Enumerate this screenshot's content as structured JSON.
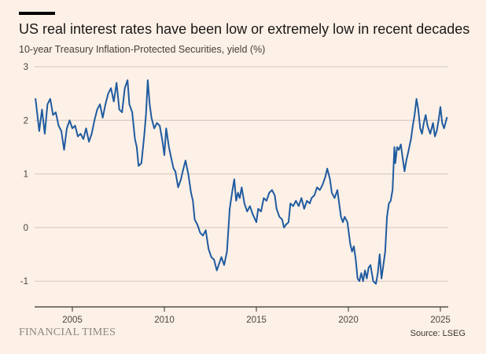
{
  "header": {
    "title": "US real interest rates have been low or extremely low in recent decades",
    "subtitle": "10-year Treasury Inflation-Protected Securities, yield (%)"
  },
  "footer": {
    "brand": "FINANCIAL TIMES",
    "source": "Source: LSEG"
  },
  "colors": {
    "background": "#fdf0e6",
    "line": "#1f5ba0",
    "grid": "#cfc6bf",
    "baseline": "#33302e"
  },
  "chart_data": {
    "type": "line",
    "title": "US real interest rates have been low or extremely low in recent decades",
    "ylabel": "10-year Treasury Inflation-Protected Securities, yield (%)",
    "ylim": [
      -1.5,
      3
    ],
    "xlim": [
      2003.0,
      2025.4
    ],
    "yticks": [
      "3",
      "2",
      "1",
      "0",
      "-1"
    ],
    "xticks": [
      "2005",
      "2010",
      "2015",
      "2020",
      "2025"
    ],
    "grid": true,
    "series": [
      {
        "values": [
          [
            2003.0,
            2.4
          ],
          [
            2003.2,
            1.8
          ],
          [
            2003.35,
            2.2
          ],
          [
            2003.5,
            1.75
          ],
          [
            2003.65,
            2.3
          ],
          [
            2003.8,
            2.4
          ],
          [
            2003.95,
            2.1
          ],
          [
            2004.1,
            2.15
          ],
          [
            2004.25,
            1.9
          ],
          [
            2004.4,
            1.8
          ],
          [
            2004.55,
            1.45
          ],
          [
            2004.7,
            1.85
          ],
          [
            2004.85,
            2.0
          ],
          [
            2005.0,
            1.85
          ],
          [
            2005.15,
            1.9
          ],
          [
            2005.3,
            1.7
          ],
          [
            2005.45,
            1.75
          ],
          [
            2005.6,
            1.65
          ],
          [
            2005.75,
            1.85
          ],
          [
            2005.9,
            1.6
          ],
          [
            2006.05,
            1.75
          ],
          [
            2006.2,
            2.0
          ],
          [
            2006.35,
            2.2
          ],
          [
            2006.5,
            2.3
          ],
          [
            2006.65,
            2.05
          ],
          [
            2006.8,
            2.3
          ],
          [
            2006.95,
            2.5
          ],
          [
            2007.1,
            2.6
          ],
          [
            2007.25,
            2.35
          ],
          [
            2007.4,
            2.7
          ],
          [
            2007.55,
            2.2
          ],
          [
            2007.7,
            2.15
          ],
          [
            2007.85,
            2.6
          ],
          [
            2008.0,
            2.75
          ],
          [
            2008.1,
            2.3
          ],
          [
            2008.25,
            2.15
          ],
          [
            2008.4,
            1.65
          ],
          [
            2008.5,
            1.5
          ],
          [
            2008.6,
            1.15
          ],
          [
            2008.75,
            1.2
          ],
          [
            2008.9,
            1.7
          ],
          [
            2009.0,
            2.1
          ],
          [
            2009.1,
            2.75
          ],
          [
            2009.2,
            2.3
          ],
          [
            2009.3,
            2.05
          ],
          [
            2009.45,
            1.85
          ],
          [
            2009.6,
            1.95
          ],
          [
            2009.75,
            1.9
          ],
          [
            2009.9,
            1.6
          ],
          [
            2010.0,
            1.35
          ],
          [
            2010.1,
            1.85
          ],
          [
            2010.25,
            1.5
          ],
          [
            2010.4,
            1.25
          ],
          [
            2010.5,
            1.1
          ],
          [
            2010.6,
            1.05
          ],
          [
            2010.75,
            0.75
          ],
          [
            2010.9,
            0.9
          ],
          [
            2011.0,
            1.05
          ],
          [
            2011.15,
            1.25
          ],
          [
            2011.3,
            1.0
          ],
          [
            2011.45,
            0.65
          ],
          [
            2011.55,
            0.5
          ],
          [
            2011.65,
            0.15
          ],
          [
            2011.8,
            0.05
          ],
          [
            2011.95,
            -0.1
          ],
          [
            2012.1,
            -0.15
          ],
          [
            2012.25,
            -0.05
          ],
          [
            2012.4,
            -0.4
          ],
          [
            2012.55,
            -0.55
          ],
          [
            2012.7,
            -0.6
          ],
          [
            2012.85,
            -0.8
          ],
          [
            2013.0,
            -0.65
          ],
          [
            2013.1,
            -0.55
          ],
          [
            2013.25,
            -0.7
          ],
          [
            2013.4,
            -0.45
          ],
          [
            2013.55,
            0.35
          ],
          [
            2013.7,
            0.7
          ],
          [
            2013.8,
            0.9
          ],
          [
            2013.9,
            0.5
          ],
          [
            2014.0,
            0.65
          ],
          [
            2014.1,
            0.55
          ],
          [
            2014.2,
            0.75
          ],
          [
            2014.35,
            0.45
          ],
          [
            2014.5,
            0.3
          ],
          [
            2014.65,
            0.4
          ],
          [
            2014.8,
            0.25
          ],
          [
            2015.0,
            0.1
          ],
          [
            2015.1,
            0.35
          ],
          [
            2015.25,
            0.3
          ],
          [
            2015.4,
            0.55
          ],
          [
            2015.55,
            0.5
          ],
          [
            2015.7,
            0.65
          ],
          [
            2015.85,
            0.7
          ],
          [
            2016.0,
            0.6
          ],
          [
            2016.1,
            0.35
          ],
          [
            2016.25,
            0.2
          ],
          [
            2016.4,
            0.15
          ],
          [
            2016.5,
            0.0
          ],
          [
            2016.6,
            0.05
          ],
          [
            2016.75,
            0.1
          ],
          [
            2016.85,
            0.45
          ],
          [
            2017.0,
            0.4
          ],
          [
            2017.15,
            0.5
          ],
          [
            2017.3,
            0.4
          ],
          [
            2017.45,
            0.55
          ],
          [
            2017.6,
            0.35
          ],
          [
            2017.75,
            0.5
          ],
          [
            2017.9,
            0.45
          ],
          [
            2018.0,
            0.55
          ],
          [
            2018.15,
            0.6
          ],
          [
            2018.3,
            0.75
          ],
          [
            2018.45,
            0.7
          ],
          [
            2018.6,
            0.8
          ],
          [
            2018.75,
            0.95
          ],
          [
            2018.85,
            1.1
          ],
          [
            2019.0,
            0.9
          ],
          [
            2019.1,
            0.65
          ],
          [
            2019.25,
            0.55
          ],
          [
            2019.4,
            0.7
          ],
          [
            2019.5,
            0.45
          ],
          [
            2019.6,
            0.2
          ],
          [
            2019.7,
            0.1
          ],
          [
            2019.8,
            0.2
          ],
          [
            2019.95,
            0.1
          ],
          [
            2020.1,
            -0.3
          ],
          [
            2020.2,
            -0.45
          ],
          [
            2020.3,
            -0.35
          ],
          [
            2020.4,
            -0.6
          ],
          [
            2020.5,
            -0.95
          ],
          [
            2020.6,
            -1.0
          ],
          [
            2020.7,
            -0.85
          ],
          [
            2020.8,
            -1.0
          ],
          [
            2020.9,
            -0.8
          ],
          [
            2021.0,
            -0.95
          ],
          [
            2021.1,
            -0.75
          ],
          [
            2021.2,
            -0.7
          ],
          [
            2021.35,
            -1.0
          ],
          [
            2021.5,
            -1.05
          ],
          [
            2021.6,
            -0.85
          ],
          [
            2021.7,
            -0.5
          ],
          [
            2021.8,
            -0.95
          ],
          [
            2021.9,
            -0.7
          ],
          [
            2022.0,
            -0.45
          ],
          [
            2022.1,
            0.2
          ],
          [
            2022.2,
            0.45
          ],
          [
            2022.3,
            0.5
          ],
          [
            2022.4,
            0.7
          ],
          [
            2022.5,
            1.5
          ],
          [
            2022.55,
            1.2
          ],
          [
            2022.65,
            1.5
          ],
          [
            2022.75,
            1.45
          ],
          [
            2022.85,
            1.55
          ],
          [
            2022.95,
            1.3
          ],
          [
            2023.05,
            1.05
          ],
          [
            2023.15,
            1.25
          ],
          [
            2023.25,
            1.4
          ],
          [
            2023.4,
            1.65
          ],
          [
            2023.5,
            1.9
          ],
          [
            2023.6,
            2.1
          ],
          [
            2023.7,
            2.4
          ],
          [
            2023.8,
            2.2
          ],
          [
            2023.9,
            1.85
          ],
          [
            2024.0,
            1.75
          ],
          [
            2024.1,
            1.95
          ],
          [
            2024.2,
            2.1
          ],
          [
            2024.3,
            1.9
          ],
          [
            2024.45,
            1.75
          ],
          [
            2024.6,
            1.95
          ],
          [
            2024.7,
            1.7
          ],
          [
            2024.8,
            1.8
          ],
          [
            2024.9,
            2.0
          ],
          [
            2025.0,
            2.25
          ],
          [
            2025.1,
            1.95
          ],
          [
            2025.2,
            1.85
          ],
          [
            2025.35,
            2.05
          ]
        ]
      }
    ]
  }
}
